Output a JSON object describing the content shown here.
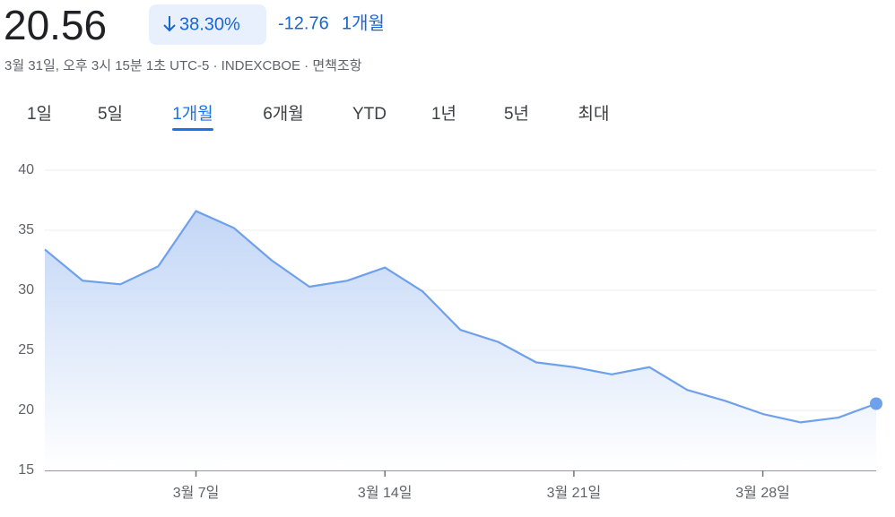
{
  "header": {
    "price": "20.56",
    "change_percent": "38.30%",
    "change": "-12.76",
    "period": "1개월",
    "subtitle": "3월 31일, 오후 3시 15분 1초 UTC-5 · INDEXCBOE · 면책조항"
  },
  "tabs": [
    "1일",
    "5일",
    "1개월",
    "6개월",
    "YTD",
    "1년",
    "5년",
    "최대"
  ],
  "selected_tab": 2,
  "chart_data": {
    "type": "area",
    "categories": [
      null,
      null,
      null,
      null,
      "3월 7일",
      null,
      null,
      null,
      null,
      "3월 14일",
      null,
      null,
      null,
      null,
      "3월 21일",
      null,
      null,
      null,
      null,
      "3월 28일",
      null,
      null,
      null
    ],
    "series": [
      {
        "color": "#6fa0ec",
        "values": [
          33.4,
          30.8,
          30.5,
          32.0,
          36.6,
          35.2,
          32.5,
          30.3,
          30.8,
          31.9,
          29.9,
          26.7,
          25.7,
          24.0,
          23.6,
          23.0,
          23.6,
          21.7,
          20.8,
          19.7,
          19.0,
          19.4,
          20.56
        ]
      }
    ],
    "ylim": [
      15,
      40
    ],
    "yticks": [
      15,
      20,
      25,
      30,
      35,
      40
    ],
    "grid": true
  }
}
